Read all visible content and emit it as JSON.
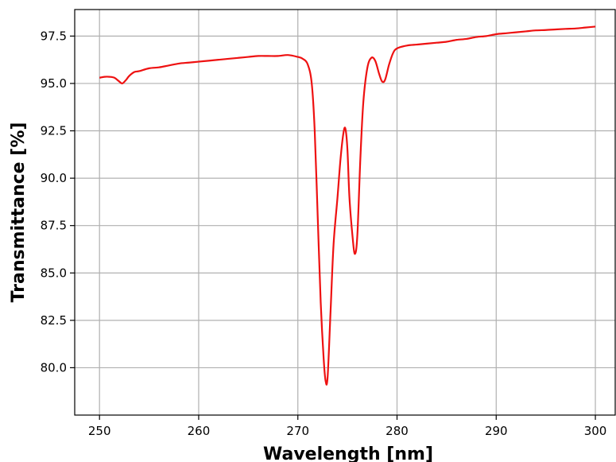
{
  "chart_data": {
    "type": "line",
    "title": "",
    "xlabel": "Wavelength [nm]",
    "ylabel": "Transmittance [%]",
    "xlim": [
      247.5,
      302.0
    ],
    "ylim": [
      77.5,
      98.9
    ],
    "xticks": [
      250,
      260,
      270,
      280,
      290,
      300
    ],
    "yticks": [
      80.0,
      82.5,
      85.0,
      87.5,
      90.0,
      92.5,
      95.0,
      97.5
    ],
    "xtick_labels": [
      "250",
      "260",
      "270",
      "280",
      "290",
      "300"
    ],
    "ytick_labels": [
      "80.0",
      "82.5",
      "85.0",
      "87.5",
      "90.0",
      "92.5",
      "95.0",
      "97.5"
    ],
    "grid": true,
    "series": [
      {
        "color": "#ee1111",
        "x": [
          250,
          250.5,
          251,
          251.5,
          252,
          252.3,
          252.7,
          253,
          253.5,
          254,
          255,
          256,
          257,
          258,
          259,
          260,
          261,
          262,
          263,
          264,
          265,
          266,
          267,
          268,
          269,
          270,
          270.5,
          271,
          271.4,
          271.7,
          272,
          272.3,
          272.6,
          272.8,
          273.0,
          273.3,
          273.6,
          274.0,
          274.3,
          274.6,
          274.8,
          275.0,
          275.2,
          275.5,
          275.75,
          276.0,
          276.3,
          276.6,
          277.0,
          277.4,
          277.8,
          278.2,
          278.5,
          278.8,
          279.2,
          279.6,
          280,
          281,
          282,
          283,
          284,
          285,
          286,
          287,
          288,
          289,
          290,
          291,
          292,
          293,
          294,
          295,
          296,
          297,
          298,
          299,
          300
        ],
        "y": [
          95.3,
          95.35,
          95.35,
          95.3,
          95.1,
          95.0,
          95.2,
          95.4,
          95.6,
          95.65,
          95.8,
          95.85,
          95.95,
          96.05,
          96.1,
          96.15,
          96.2,
          96.25,
          96.3,
          96.35,
          96.4,
          96.45,
          96.45,
          96.45,
          96.5,
          96.4,
          96.3,
          96.0,
          95.0,
          92.5,
          88.0,
          83.5,
          80.5,
          79.3,
          79.5,
          83.0,
          86.5,
          89.0,
          91.0,
          92.4,
          92.6,
          91.5,
          89.0,
          87.0,
          86.0,
          87.0,
          91.0,
          94.0,
          95.8,
          96.35,
          96.2,
          95.5,
          95.1,
          95.2,
          96.0,
          96.6,
          96.85,
          97.0,
          97.05,
          97.1,
          97.15,
          97.2,
          97.3,
          97.35,
          97.45,
          97.5,
          97.6,
          97.65,
          97.7,
          97.75,
          97.8,
          97.82,
          97.85,
          97.88,
          97.9,
          97.95,
          98.0
        ]
      }
    ]
  }
}
